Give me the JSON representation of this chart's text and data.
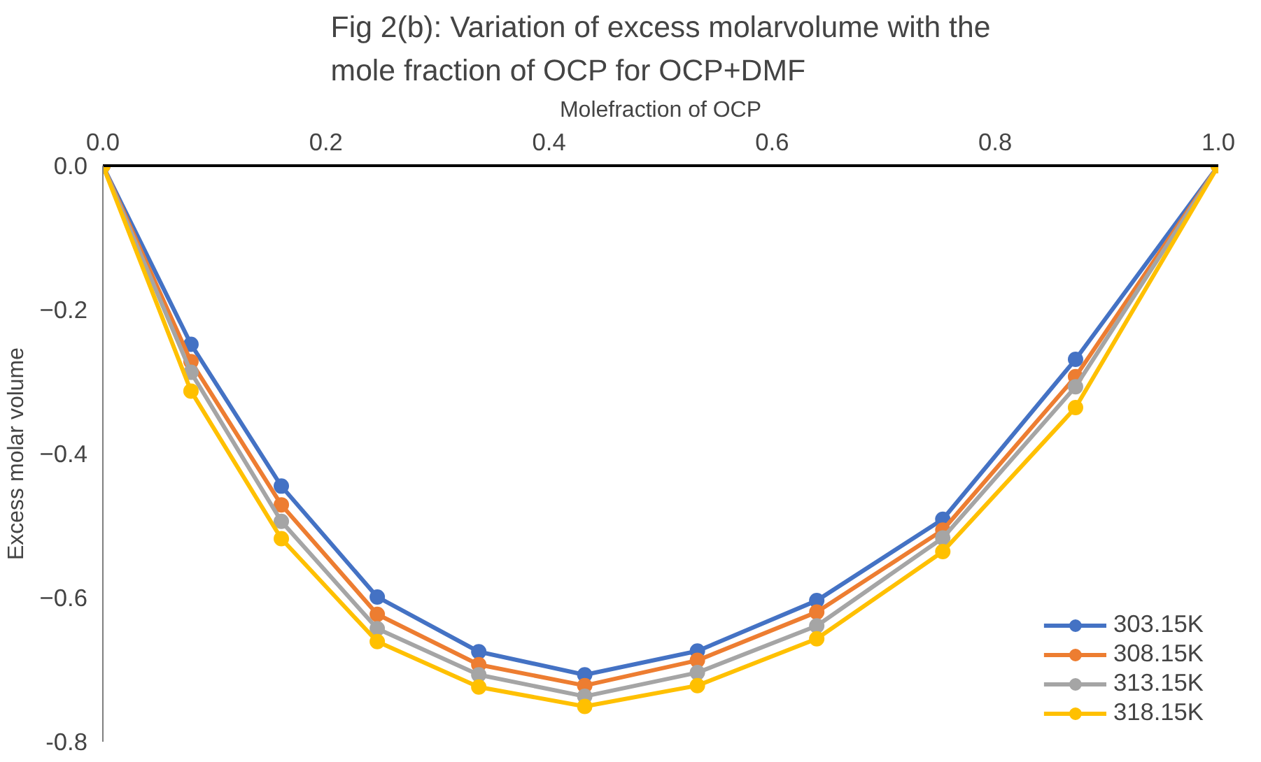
{
  "chart_data": {
    "type": "line",
    "title": "Fig 2(b): Variation of excess molarvolume with the mole fraction of OCP for OCP+DMF",
    "xlabel": "Molefraction of OCP",
    "ylabel": "Excess molar volume",
    "x": [
      0.0,
      0.079,
      0.16,
      0.246,
      0.337,
      0.432,
      0.533,
      0.64,
      0.753,
      0.872,
      1.0
    ],
    "series": [
      {
        "name": "303.15K",
        "color": "#4472c4",
        "values": [
          0,
          -0.248,
          -0.445,
          -0.599,
          -0.675,
          -0.707,
          -0.674,
          -0.604,
          -0.491,
          -0.269,
          0
        ]
      },
      {
        "name": "308.15K",
        "color": "#ed7d31",
        "values": [
          0,
          -0.272,
          -0.471,
          -0.623,
          -0.693,
          -0.722,
          -0.687,
          -0.62,
          -0.506,
          -0.293,
          0
        ]
      },
      {
        "name": "313.15K",
        "color": "#a5a5a5",
        "values": [
          0,
          -0.287,
          -0.494,
          -0.643,
          -0.707,
          -0.737,
          -0.704,
          -0.639,
          -0.517,
          -0.307,
          0
        ]
      },
      {
        "name": "318.15K",
        "color": "#ffc000",
        "values": [
          0,
          -0.313,
          -0.518,
          -0.661,
          -0.724,
          -0.751,
          -0.722,
          -0.657,
          -0.536,
          -0.336,
          0
        ]
      }
    ],
    "xlim": [
      0,
      1
    ],
    "xticks": [
      {
        "value": 0,
        "label": "0.0"
      },
      0.2,
      0.4,
      0.6,
      0.8,
      {
        "value": 1,
        "label": "1.0"
      }
    ],
    "ylim": [
      -0.8,
      0
    ],
    "yticks": [
      {
        "value": -0.8,
        "label": "-0.8"
      },
      -0.6,
      -0.4,
      -0.2,
      {
        "value": 0,
        "label": "0.0"
      }
    ],
    "grid": false,
    "legend": "bottom right",
    "marker": "circle",
    "line_style": "solid"
  }
}
